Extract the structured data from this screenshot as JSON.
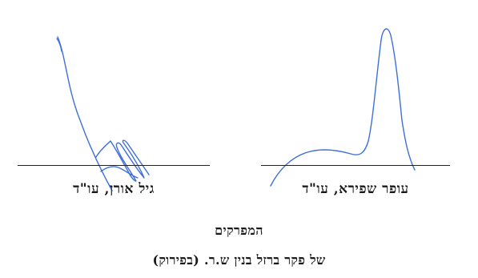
{
  "signatories": {
    "left": {
      "caption": "גיל אורן, עו\"ד"
    },
    "right": {
      "caption": "עופר שפירא, עו\"ד"
    }
  },
  "document": {
    "role_heading": "המפרקים",
    "company_line": "של פקר ברזל בנין ש.ר. (בפירוק)"
  },
  "colors": {
    "ink": "#1a1a1a",
    "signature_ink": "#3f6fd8"
  }
}
